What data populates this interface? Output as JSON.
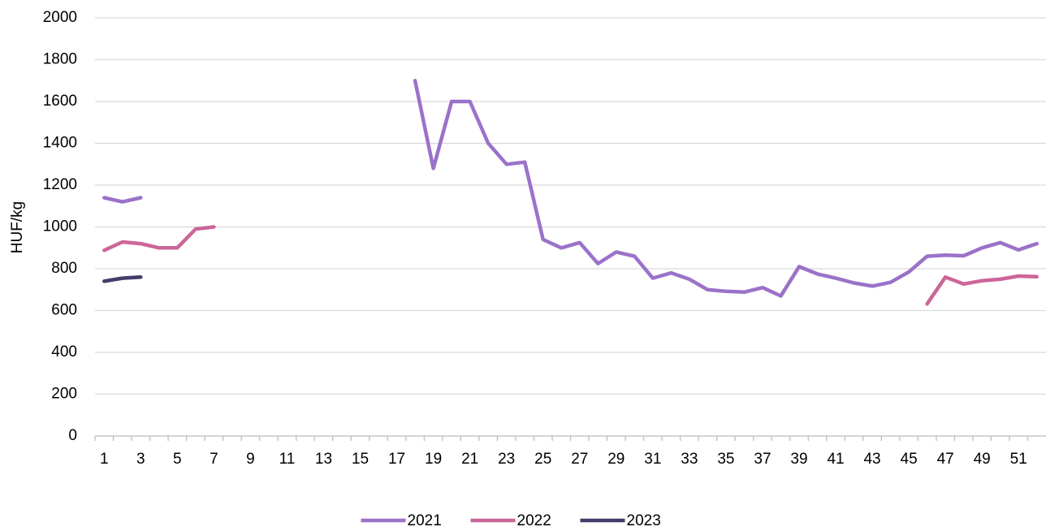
{
  "chart_data": {
    "type": "line",
    "y_label": "HUF/kg",
    "categories": [
      1,
      null,
      3,
      null,
      5,
      null,
      7,
      null,
      9,
      null,
      11,
      null,
      13,
      null,
      15,
      null,
      17,
      null,
      19,
      null,
      21,
      null,
      23,
      null,
      25,
      null,
      27,
      null,
      29,
      null,
      31,
      null,
      33,
      null,
      35,
      null,
      37,
      null,
      39,
      null,
      41,
      null,
      43,
      null,
      45,
      null,
      47,
      null,
      49,
      null,
      51,
      null
    ],
    "series": [
      {
        "name": "2021",
        "color": "#9b72c9",
        "values": [
          1140,
          1120,
          1140,
          null,
          null,
          null,
          null,
          null,
          null,
          null,
          null,
          null,
          null,
          null,
          null,
          null,
          null,
          1700,
          1280,
          1600,
          1600,
          1400,
          1300,
          1310,
          940,
          900,
          925,
          825,
          880,
          860,
          755,
          780,
          750,
          700,
          692,
          688,
          710,
          670,
          810,
          775,
          755,
          732,
          717,
          735,
          785,
          860,
          865,
          862,
          900,
          925,
          890,
          920
        ]
      },
      {
        "name": "2022",
        "color": "#cc6699",
        "values": [
          888,
          928,
          920,
          900,
          900,
          990,
          1000,
          null,
          null,
          null,
          null,
          null,
          null,
          null,
          null,
          null,
          null,
          null,
          null,
          null,
          null,
          null,
          null,
          null,
          null,
          null,
          null,
          null,
          null,
          null,
          null,
          null,
          null,
          null,
          null,
          null,
          null,
          null,
          null,
          null,
          null,
          null,
          null,
          null,
          null,
          632,
          760,
          727,
          743,
          750,
          765,
          762
        ]
      },
      {
        "name": "2023",
        "color": "#453c6b",
        "values": [
          740,
          755,
          760,
          null,
          null,
          null,
          null,
          null,
          null,
          null,
          null,
          null,
          null,
          null,
          null,
          null,
          null,
          null,
          null,
          null,
          null,
          null,
          null,
          null,
          null,
          null,
          null,
          null,
          null,
          null,
          null,
          null,
          null,
          null,
          null,
          null,
          null,
          null,
          null,
          null,
          null,
          null,
          null,
          null,
          null,
          null,
          null,
          null,
          null,
          null,
          null,
          null
        ]
      }
    ],
    "ylim": [
      0,
      2000
    ],
    "yticks": [
      0,
      200,
      400,
      600,
      800,
      1000,
      1200,
      1400,
      1600,
      1800,
      2000
    ],
    "grid": true,
    "legend": "bottom"
  }
}
